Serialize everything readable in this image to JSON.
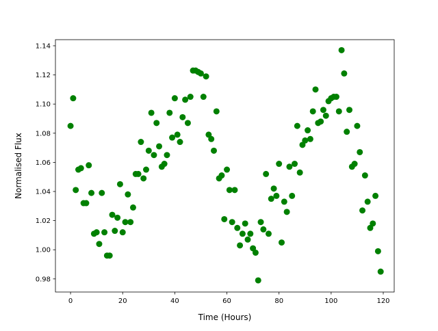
{
  "chart_data": {
    "type": "scatter",
    "title": "",
    "xlabel": "Time (Hours)",
    "ylabel": "Normalised Flux",
    "xlim": [
      -5.8,
      124.2
    ],
    "ylim": [
      0.971,
      1.1442
    ],
    "xticks": [
      0,
      20,
      40,
      60,
      80,
      100,
      120
    ],
    "yticks": [
      0.98,
      1.0,
      1.02,
      1.04,
      1.06,
      1.08,
      1.1,
      1.12,
      1.14
    ],
    "ytick_labels": [
      "0.98",
      "1.00",
      "1.02",
      "1.04",
      "1.06",
      "1.08",
      "1.10",
      "1.12",
      "1.14"
    ],
    "grid": false,
    "marker_color": "#008000",
    "x": [
      0,
      1,
      2,
      3,
      4,
      5,
      6,
      7,
      8,
      9,
      10,
      11,
      12,
      13,
      14,
      15,
      16,
      17,
      18,
      19,
      20,
      21,
      22,
      23,
      24,
      25,
      26,
      27,
      28,
      29,
      30,
      31,
      32,
      33,
      34,
      35,
      36,
      37,
      38,
      39,
      40,
      41,
      42,
      43,
      44,
      45,
      46,
      47,
      48,
      49,
      50,
      51,
      52,
      53,
      54,
      55,
      56,
      57,
      58,
      59,
      60,
      61,
      62,
      63,
      64,
      65,
      66,
      67,
      68,
      69,
      70,
      71,
      72,
      73,
      74,
      75,
      76,
      77,
      78,
      79,
      80,
      81,
      82,
      83,
      84,
      85,
      86,
      87,
      88,
      89,
      90,
      91,
      92,
      93,
      94,
      95,
      96,
      97,
      98,
      99,
      100,
      101,
      102,
      103,
      104,
      105,
      106,
      107,
      108,
      109,
      110,
      111,
      112,
      113,
      114,
      115,
      116,
      117,
      118,
      119
    ],
    "y": [
      1.085,
      1.104,
      1.041,
      1.055,
      1.056,
      1.032,
      1.032,
      1.058,
      1.039,
      1.011,
      1.012,
      1.004,
      1.039,
      1.012,
      0.996,
      0.996,
      1.024,
      1.013,
      1.022,
      1.045,
      1.012,
      1.019,
      1.038,
      1.019,
      1.029,
      1.052,
      1.052,
      1.074,
      1.049,
      1.055,
      1.068,
      1.094,
      1.065,
      1.087,
      1.071,
      1.057,
      1.059,
      1.065,
      1.094,
      1.077,
      1.104,
      1.079,
      1.074,
      1.091,
      1.103,
      1.087,
      1.105,
      1.123,
      1.123,
      1.122,
      1.121,
      1.105,
      1.119,
      1.079,
      1.076,
      1.068,
      1.095,
      1.049,
      1.051,
      1.021,
      1.055,
      1.041,
      1.019,
      1.041,
      1.015,
      1.003,
      1.011,
      1.018,
      1.007,
      1.011,
      1.001,
      0.998,
      0.979,
      1.019,
      1.014,
      1.052,
      1.011,
      1.035,
      1.042,
      1.037,
      1.059,
      1.005,
      1.033,
      1.026,
      1.057,
      1.037,
      1.059,
      1.085,
      1.053,
      1.072,
      1.075,
      1.082,
      1.076,
      1.095,
      1.11,
      1.087,
      1.088,
      1.096,
      1.092,
      1.102,
      1.104,
      1.105,
      1.105,
      1.095,
      1.137,
      1.121,
      1.081,
      1.096,
      1.057,
      1.059,
      1.085,
      1.067,
      1.027,
      1.051,
      1.033,
      1.015,
      1.018,
      1.037,
      0.999,
      0.985
    ]
  }
}
